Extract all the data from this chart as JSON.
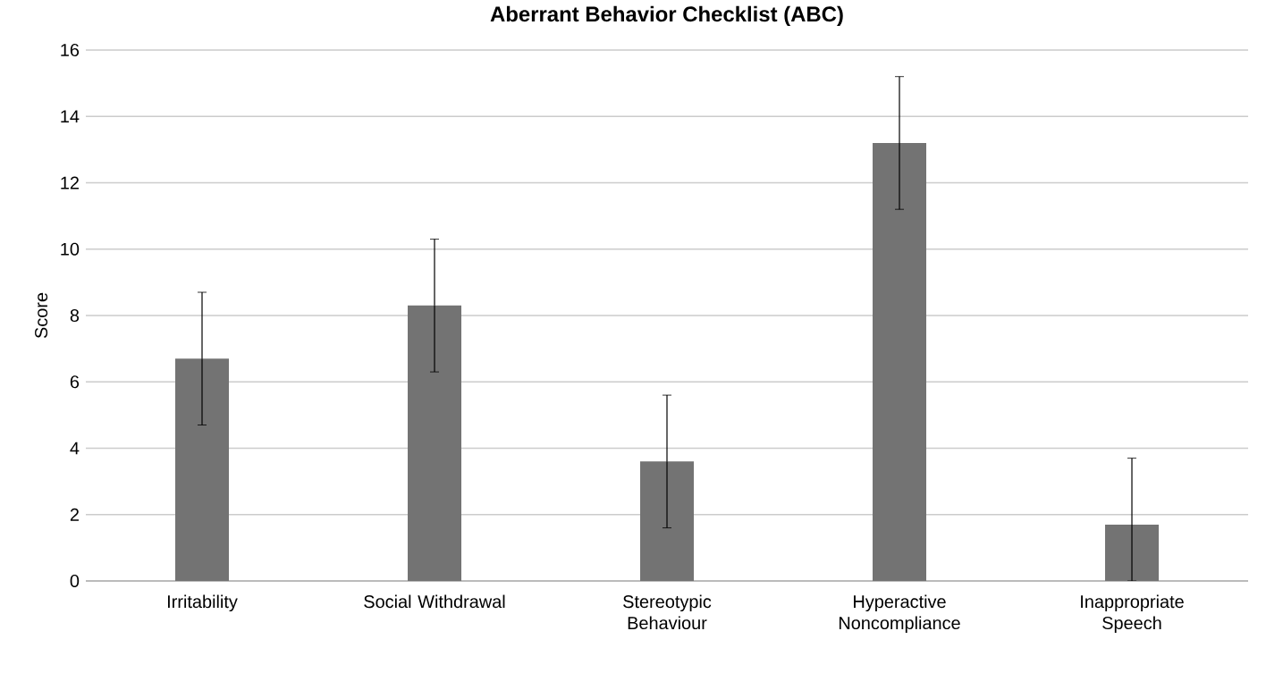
{
  "chart_data": {
    "type": "bar",
    "title": "Aberrant Behavior Checklist (ABC)",
    "ylabel": "Score",
    "categories": [
      "Irritability",
      "Social Withdrawal",
      "Stereotypic Behaviour",
      "Hyperactive Noncompliance",
      "Inappropriate Speech"
    ],
    "values": [
      6.7,
      8.3,
      3.6,
      13.2,
      1.7
    ],
    "errors": [
      2,
      2,
      2,
      2,
      [
        0,
        3.7
      ]
    ],
    "color": "#737373",
    "ylim": [
      0,
      16
    ],
    "yticks": [
      0,
      2,
      4,
      6,
      8,
      10,
      12,
      14,
      16
    ],
    "grid": "y"
  }
}
